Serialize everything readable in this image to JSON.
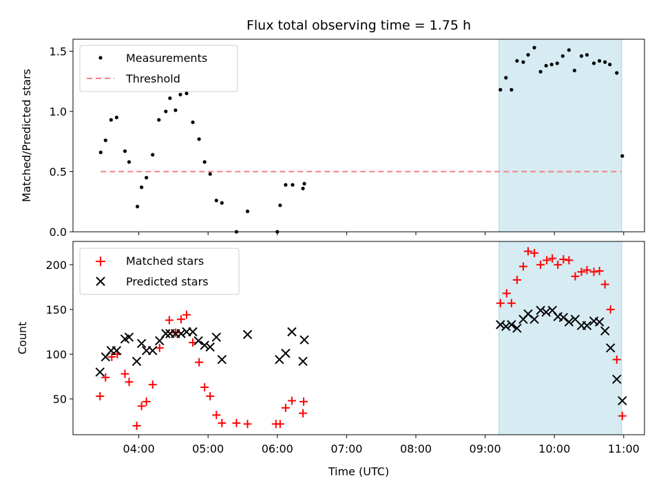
{
  "chart_data": {
    "type": "scatter",
    "title": "Flux total observing time = 1.75 h",
    "xlabel": "Time (UTC)",
    "x_ticks": [
      "04:00",
      "05:00",
      "06:00",
      "07:00",
      "08:00",
      "09:00",
      "10:00",
      "11:00"
    ],
    "x_tick_hours": [
      4,
      5,
      6,
      7,
      8,
      9,
      10,
      11
    ],
    "xlim": [
      3.05,
      11.3
    ],
    "shaded_region": {
      "x": [
        9.2,
        10.97
      ],
      "color": "#add8e6"
    },
    "top": {
      "ylabel": "Matched/Predicted stars",
      "ylim": [
        0,
        1.6
      ],
      "y_ticks": [
        "0.0",
        "0.5",
        "1.0",
        "1.5"
      ],
      "y_tick_values": [
        0,
        0.5,
        1.0,
        1.5
      ],
      "legend_position": "upper left",
      "threshold": {
        "name": "Threshold",
        "value": 0.5,
        "x": [
          3.45,
          10.97
        ],
        "color": "#f08080"
      },
      "series": [
        {
          "name": "Measurements",
          "color": "#000000",
          "x": [
            3.45,
            3.52,
            3.6,
            3.68,
            3.8,
            3.86,
            3.98,
            4.04,
            4.11,
            4.2,
            4.29,
            4.39,
            4.45,
            4.53,
            4.6,
            4.69,
            4.78,
            4.87,
            4.95,
            5.03,
            5.12,
            5.2,
            5.41,
            5.57,
            6.0,
            6.04,
            6.12,
            6.22,
            6.37,
            6.39,
            9.22,
            9.3,
            9.38,
            9.46,
            9.55,
            9.62,
            9.71,
            9.8,
            9.88,
            9.96,
            10.04,
            10.12,
            10.21,
            10.29,
            10.39,
            10.47,
            10.57,
            10.65,
            10.73,
            10.8,
            10.9,
            10.98
          ],
          "y": [
            0.66,
            0.76,
            0.93,
            0.95,
            0.67,
            0.58,
            0.21,
            0.37,
            0.45,
            0.64,
            0.93,
            1.0,
            1.11,
            1.01,
            1.14,
            1.15,
            0.91,
            0.77,
            0.58,
            0.48,
            0.26,
            0.24,
            0.0,
            0.17,
            0.0,
            0.22,
            0.39,
            0.39,
            0.36,
            0.4,
            1.18,
            1.28,
            1.18,
            1.42,
            1.41,
            1.47,
            1.53,
            1.33,
            1.38,
            1.39,
            1.4,
            1.46,
            1.51,
            1.34,
            1.46,
            1.47,
            1.4,
            1.42,
            1.41,
            1.39,
            1.32,
            0.63
          ]
        }
      ]
    },
    "bottom": {
      "ylabel": "Count",
      "ylim": [
        10,
        226
      ],
      "y_ticks": [
        "50",
        "100",
        "150",
        "200"
      ],
      "y_tick_values": [
        50,
        100,
        150,
        200
      ],
      "legend_position": "upper left",
      "series": [
        {
          "name": "Matched stars",
          "marker": "+",
          "color": "#ff0000",
          "x": [
            3.44,
            3.52,
            3.61,
            3.69,
            3.8,
            3.86,
            3.97,
            4.04,
            4.11,
            4.2,
            4.3,
            4.44,
            4.53,
            4.61,
            4.69,
            4.78,
            4.87,
            4.95,
            5.03,
            5.12,
            5.2,
            5.41,
            5.57,
            5.98,
            6.04,
            6.12,
            6.21,
            6.37,
            6.38,
            9.22,
            9.31,
            9.38,
            9.46,
            9.55,
            9.62,
            9.71,
            9.8,
            9.89,
            9.97,
            10.05,
            10.13,
            10.21,
            10.3,
            10.39,
            10.47,
            10.57,
            10.65,
            10.73,
            10.81,
            10.9,
            10.98
          ],
          "y": [
            53,
            74,
            97,
            100,
            78,
            69,
            20,
            42,
            47,
            66,
            107,
            138,
            124,
            139,
            144,
            113,
            91,
            63,
            53,
            32,
            23,
            23,
            22,
            22,
            22,
            40,
            48,
            34,
            47,
            157,
            168,
            157,
            183,
            198,
            215,
            213,
            200,
            205,
            207,
            200,
            206,
            205,
            187,
            192,
            194,
            192,
            193,
            178,
            150,
            94,
            31
          ]
        },
        {
          "name": "Predicted stars",
          "marker": "x",
          "color": "#000000",
          "x": [
            3.44,
            3.52,
            3.6,
            3.68,
            3.8,
            3.86,
            3.97,
            4.04,
            4.11,
            4.2,
            4.3,
            4.39,
            4.45,
            4.53,
            4.61,
            4.69,
            4.78,
            4.86,
            4.95,
            5.03,
            5.12,
            5.2,
            5.57,
            6.03,
            6.12,
            6.21,
            6.37,
            6.39,
            9.22,
            9.3,
            9.38,
            9.46,
            9.55,
            9.62,
            9.71,
            9.8,
            9.88,
            9.97,
            10.05,
            10.13,
            10.21,
            10.3,
            10.39,
            10.47,
            10.57,
            10.65,
            10.73,
            10.81,
            10.9,
            10.98
          ],
          "y": [
            80,
            97,
            104,
            104,
            117,
            119,
            92,
            112,
            104,
            104,
            115,
            123,
            123,
            123,
            123,
            125,
            125,
            115,
            110,
            108,
            119,
            94,
            122,
            94,
            101,
            125,
            92,
            116,
            133,
            131,
            133,
            129,
            139,
            145,
            139,
            149,
            147,
            149,
            142,
            141,
            136,
            139,
            132,
            132,
            137,
            136,
            126,
            107,
            72,
            48
          ]
        }
      ]
    }
  }
}
